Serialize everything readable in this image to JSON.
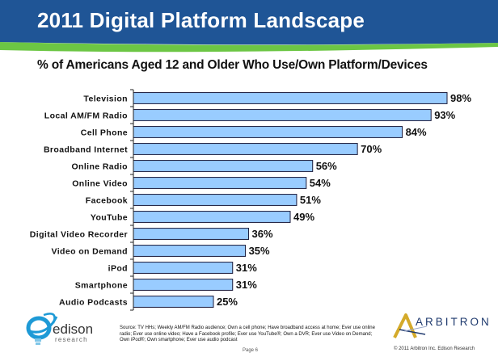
{
  "slide": {
    "title": "2011 Digital Platform Landscape",
    "subtitle": "% of Americans Aged 12 and Older Who Use/Own Platform/Devices",
    "source_note": "Source: TV HHs; Weekly AM/FM Radio audience; Own a cell phone; Have broadband access at home; Ever use online radio; Ever use online video; Have a Facebook profile; Ever use YouTube®; Own a DVR; Ever use Video on Demand; Own iPod®; Own smartphone; Ever use audio podcast",
    "page_label": "Page 6",
    "copyright": "© 2011 Arbitron Inc. Edison Research"
  },
  "logos": {
    "left": {
      "name": "edison",
      "sub": "research",
      "icon": "lightbulb-swoosh-icon"
    },
    "right": {
      "name": "ARBITRON",
      "icon": "arbitron-a-icon"
    }
  },
  "colors": {
    "header_blue": "#1F5596",
    "header_green": "#6CC644",
    "bar_fill": "#99CCFF",
    "bar_stroke": "#1A1A3A",
    "edison_blue": "#1E9AD6",
    "arbitron_gold": "#D4AA2A",
    "arbitron_navy": "#1F3A6E"
  },
  "chart_data": {
    "type": "bar",
    "orientation": "horizontal",
    "title": "% of Americans Aged 12 and Older Who Use/Own Platform/Devices",
    "xlabel": "",
    "ylabel": "",
    "xlim": [
      0,
      100
    ],
    "grid": false,
    "legend": "none",
    "value_suffix": "%",
    "categories": [
      "Television",
      "Local AM/FM Radio",
      "Cell Phone",
      "Broadband Internet",
      "Online Radio",
      "Online Video",
      "Facebook",
      "YouTube",
      "Digital Video Recorder",
      "Video on Demand",
      "iPod",
      "Smartphone",
      "Audio Podcasts"
    ],
    "values": [
      98,
      93,
      84,
      70,
      56,
      54,
      51,
      49,
      36,
      35,
      31,
      31,
      25
    ],
    "data_labels": [
      "98%",
      "93%",
      "84%",
      "70%",
      "56%",
      "54%",
      "51%",
      "49%",
      "36%",
      "35%",
      "31%",
      "31%",
      "25%"
    ]
  }
}
